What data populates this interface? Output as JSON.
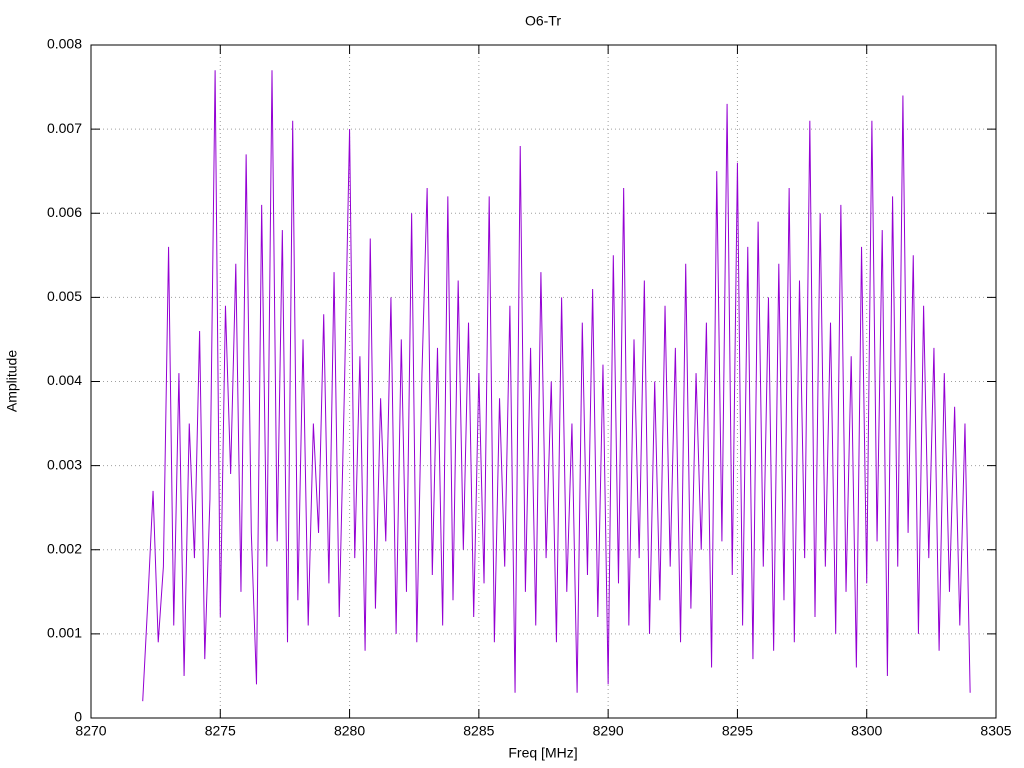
{
  "chart_data": {
    "type": "line",
    "title": "O6-Tr",
    "xlabel": "Freq [MHz]",
    "ylabel": "Amplitude",
    "color": "#9400d3",
    "grid": true,
    "xlim": [
      8270,
      8305
    ],
    "xticks": [
      8270,
      8275,
      8280,
      8285,
      8290,
      8295,
      8300,
      8305
    ],
    "ylim": [
      0,
      0.008
    ],
    "yticks": [
      0,
      0.001,
      0.002,
      0.003,
      0.004,
      0.005,
      0.006,
      0.007,
      0.008
    ],
    "x": [
      8272,
      8272.2,
      8272.4,
      8272.6,
      8272.8,
      8273,
      8273.2,
      8273.4,
      8273.6,
      8273.8,
      8274,
      8274.2,
      8274.4,
      8274.6,
      8274.8,
      8275,
      8275.2,
      8275.4,
      8275.6,
      8275.8,
      8276,
      8276.2,
      8276.4,
      8276.6,
      8276.8,
      8277,
      8277.2,
      8277.4,
      8277.6,
      8277.8,
      8278,
      8278.2,
      8278.4,
      8278.6,
      8278.8,
      8279,
      8279.2,
      8279.4,
      8279.6,
      8279.8,
      8280,
      8280.2,
      8280.4,
      8280.6,
      8280.8,
      8281,
      8281.2,
      8281.4,
      8281.6,
      8281.8,
      8282,
      8282.2,
      8282.4,
      8282.6,
      8282.8,
      8283,
      8283.2,
      8283.4,
      8283.6,
      8283.8,
      8284,
      8284.2,
      8284.4,
      8284.6,
      8284.8,
      8285,
      8285.2,
      8285.4,
      8285.6,
      8285.8,
      8286,
      8286.2,
      8286.4,
      8286.6,
      8286.8,
      8287,
      8287.2,
      8287.4,
      8287.6,
      8287.8,
      8288,
      8288.2,
      8288.4,
      8288.6,
      8288.8,
      8289,
      8289.2,
      8289.4,
      8289.6,
      8289.8,
      8290,
      8290.2,
      8290.4,
      8290.6,
      8290.8,
      8291,
      8291.2,
      8291.4,
      8291.6,
      8291.8,
      8292,
      8292.2,
      8292.4,
      8292.6,
      8292.8,
      8293,
      8293.2,
      8293.4,
      8293.6,
      8293.8,
      8294,
      8294.2,
      8294.4,
      8294.6,
      8294.8,
      8295,
      8295.2,
      8295.4,
      8295.6,
      8295.8,
      8296,
      8296.2,
      8296.4,
      8296.6,
      8296.8,
      8297,
      8297.2,
      8297.4,
      8297.6,
      8297.8,
      8298,
      8298.2,
      8298.4,
      8298.6,
      8298.8,
      8299,
      8299.2,
      8299.4,
      8299.6,
      8299.8,
      8300,
      8300.2,
      8300.4,
      8300.6,
      8300.8,
      8301,
      8301.2,
      8301.4,
      8301.6,
      8301.8,
      8302,
      8302.2,
      8302.4,
      8302.6,
      8302.8,
      8303,
      8303.2,
      8303.4,
      8303.6,
      8303.8,
      8304
    ],
    "values": [
      0.0002,
      0.0014,
      0.0027,
      0.0009,
      0.0018,
      0.0056,
      0.0011,
      0.0041,
      0.0005,
      0.0035,
      0.0019,
      0.0046,
      0.0007,
      0.0026,
      0.0077,
      0.0012,
      0.0049,
      0.0029,
      0.0054,
      0.0015,
      0.0067,
      0.0022,
      0.0004,
      0.0061,
      0.0018,
      0.0077,
      0.0021,
      0.0058,
      0.0009,
      0.0071,
      0.0014,
      0.0045,
      0.0011,
      0.0035,
      0.0022,
      0.0048,
      0.0016,
      0.0053,
      0.0012,
      0.0039,
      0.007,
      0.0019,
      0.0043,
      0.0008,
      0.0057,
      0.0013,
      0.0038,
      0.0021,
      0.005,
      0.001,
      0.0045,
      0.0015,
      0.006,
      0.0009,
      0.0041,
      0.0063,
      0.0017,
      0.0044,
      0.0011,
      0.0062,
      0.0014,
      0.0052,
      0.002,
      0.0047,
      0.0012,
      0.0041,
      0.0016,
      0.0062,
      0.0009,
      0.0038,
      0.0018,
      0.0049,
      0.0003,
      0.0068,
      0.0015,
      0.0044,
      0.0011,
      0.0053,
      0.0019,
      0.004,
      0.0009,
      0.005,
      0.0015,
      0.0035,
      0.0003,
      0.0047,
      0.0017,
      0.0051,
      0.0012,
      0.0042,
      0.0004,
      0.0055,
      0.0016,
      0.0063,
      0.0011,
      0.0045,
      0.0019,
      0.0052,
      0.001,
      0.004,
      0.0014,
      0.0049,
      0.0018,
      0.0044,
      0.0009,
      0.0054,
      0.0013,
      0.0041,
      0.002,
      0.0047,
      0.0006,
      0.0065,
      0.0021,
      0.0073,
      0.0017,
      0.0066,
      0.0011,
      0.0056,
      0.0007,
      0.0059,
      0.0018,
      0.005,
      0.0008,
      0.0054,
      0.0014,
      0.0063,
      0.0009,
      0.0052,
      0.0019,
      0.0071,
      0.0012,
      0.006,
      0.0018,
      0.0047,
      0.001,
      0.0061,
      0.0015,
      0.0043,
      0.0006,
      0.0056,
      0.0016,
      0.0071,
      0.0021,
      0.0058,
      0.0005,
      0.0062,
      0.0018,
      0.0074,
      0.0022,
      0.0055,
      0.001,
      0.0049,
      0.0019,
      0.0044,
      0.0008,
      0.0041,
      0.0015,
      0.0037,
      0.0011,
      0.0035,
      0.0003
    ]
  }
}
